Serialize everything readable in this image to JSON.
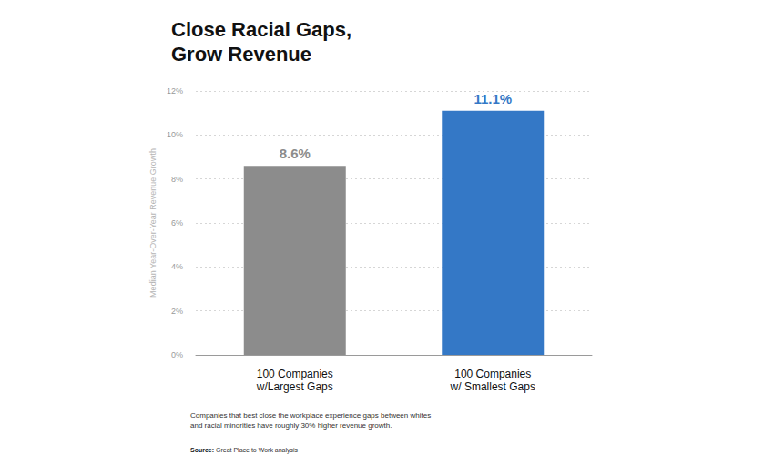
{
  "chart_data": {
    "type": "bar",
    "title": "Close Racial Gaps,\nGrow Revenue",
    "ylabel": "Median Year-Over-Year Revenue Growth",
    "categories": [
      "100 Companies\nw/Largest Gaps",
      "100 Companies\nw/ Smallest Gaps"
    ],
    "values": [
      8.6,
      11.1
    ],
    "value_labels": [
      "8.6%",
      "11.1%"
    ],
    "colors": [
      "#8c8c8c",
      "#3478c6"
    ],
    "ylim": [
      0,
      12
    ],
    "yticks": [
      {
        "value": 0,
        "label": "0%"
      },
      {
        "value": 2,
        "label": "2%"
      },
      {
        "value": 4,
        "label": "4%"
      },
      {
        "value": 6,
        "label": "6%"
      },
      {
        "value": 8,
        "label": "8%"
      },
      {
        "value": 10,
        "label": "10%"
      },
      {
        "value": 12,
        "label": "12%"
      }
    ],
    "grid": true,
    "data_labels": true,
    "footnote": "Companies that best close the workplace experience gaps between whites\nand racial minorities have roughly 30% higher revenue growth.",
    "source": "Source: Great Place to Work analysis"
  }
}
